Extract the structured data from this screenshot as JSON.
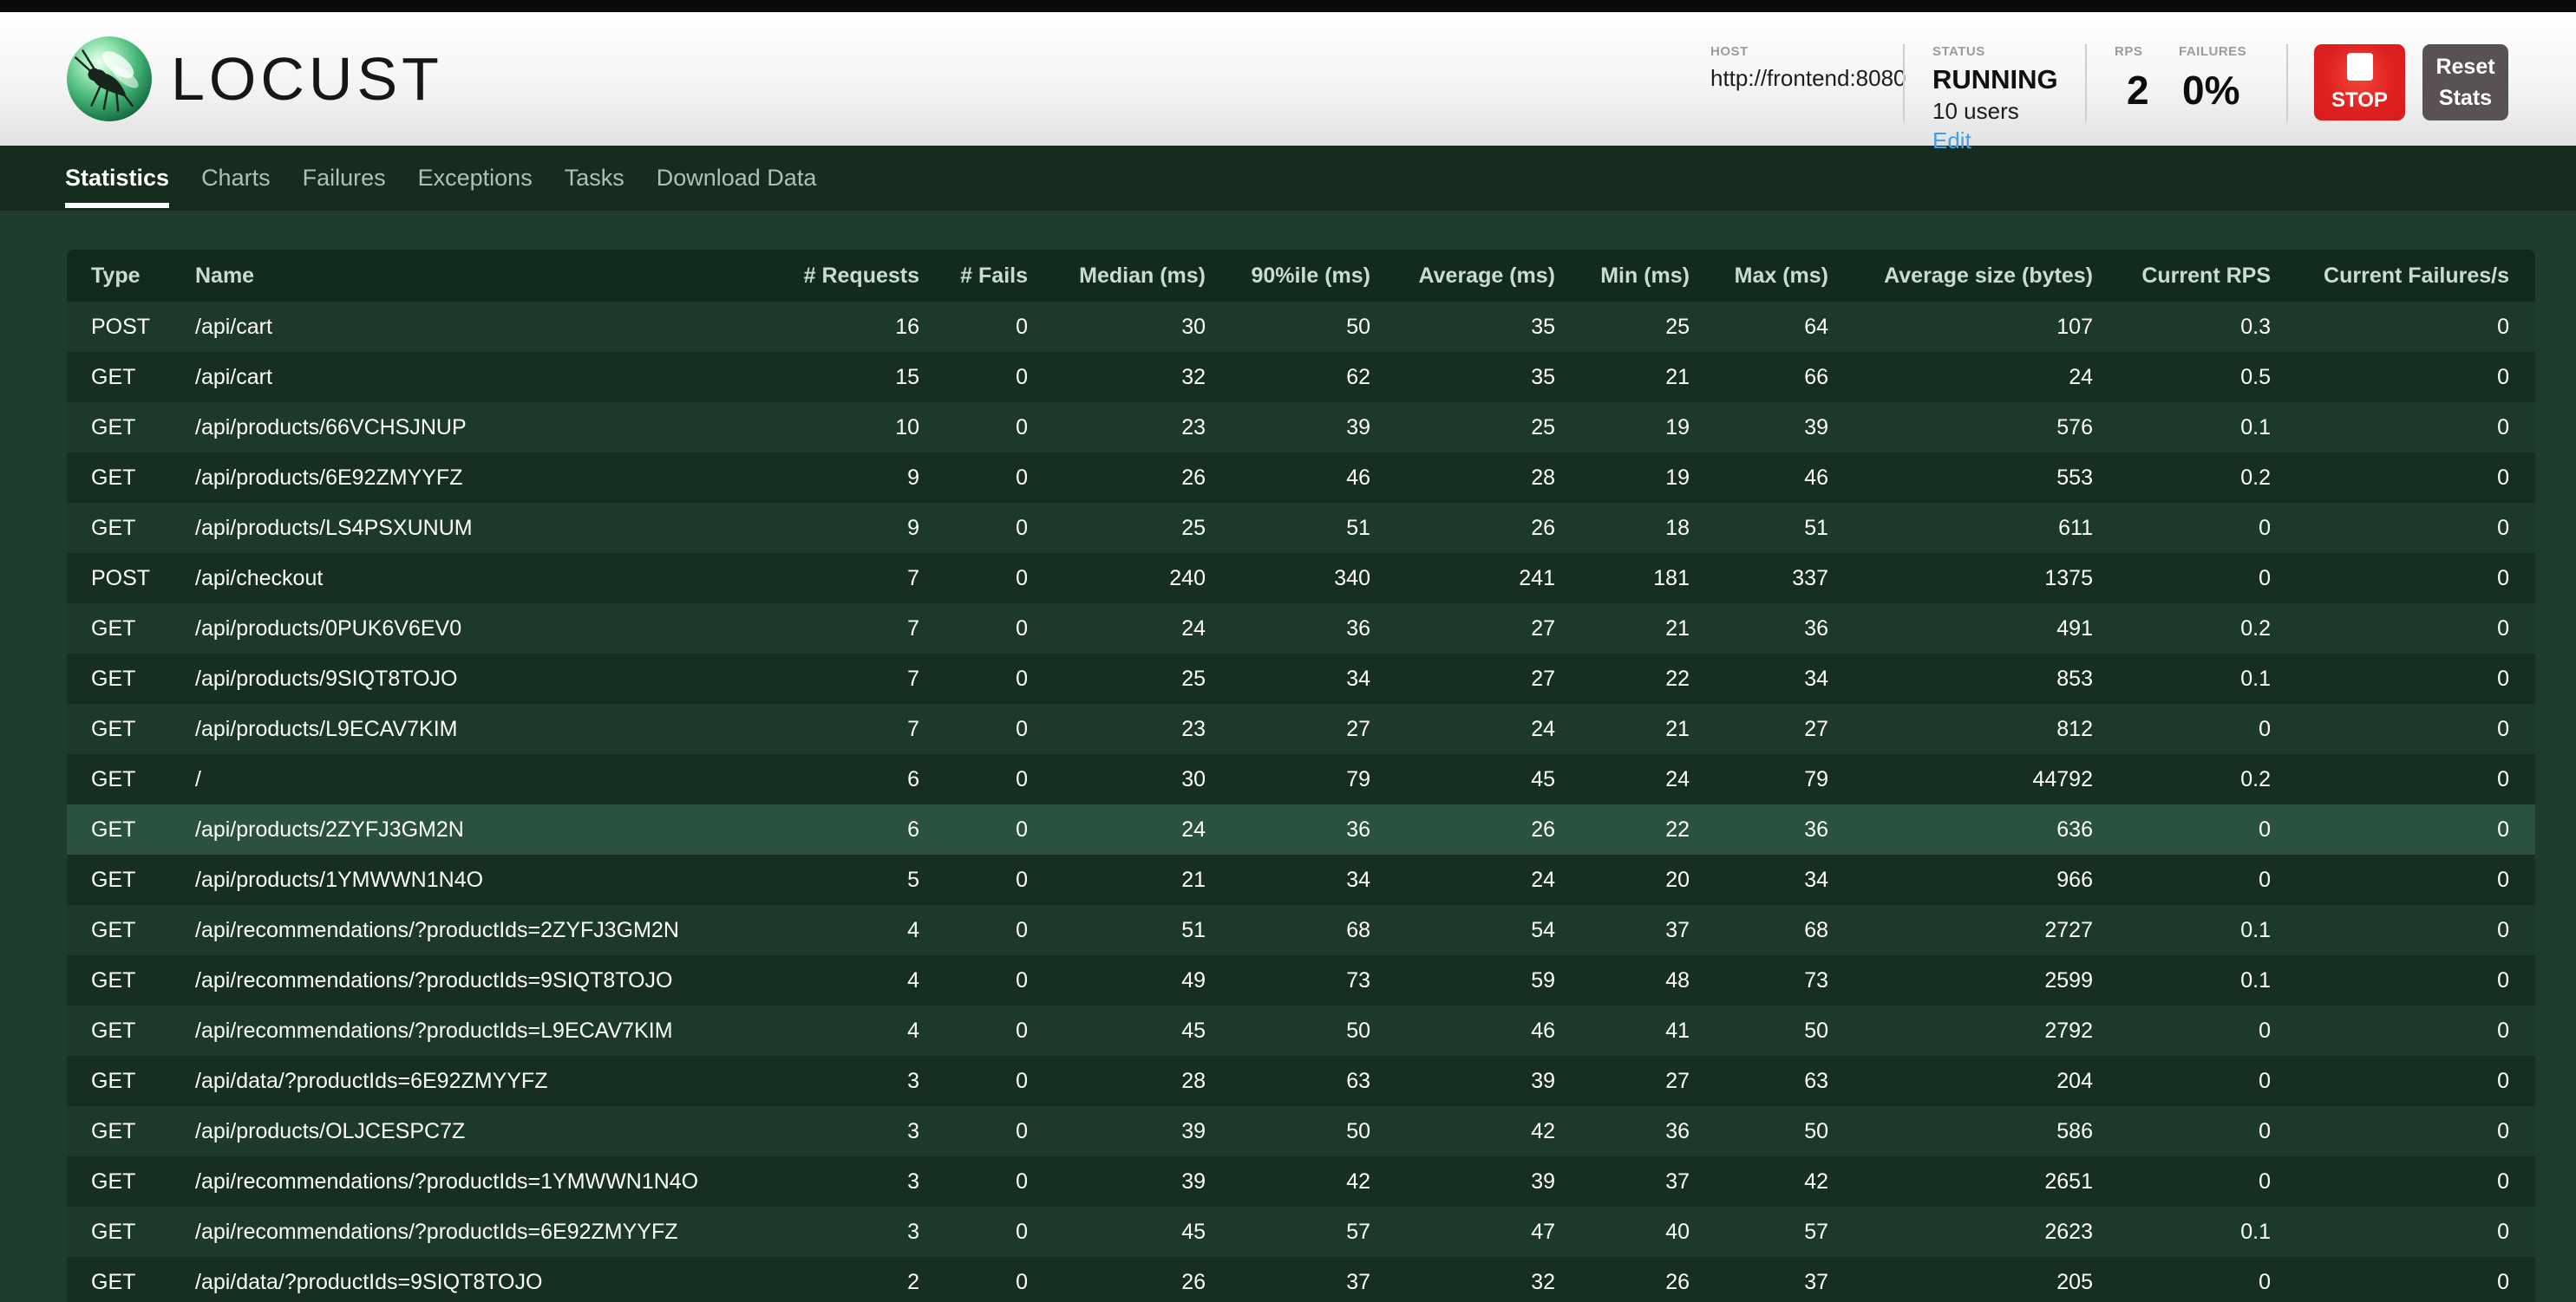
{
  "header": {
    "logo_text": "LOCUST",
    "host": {
      "label": "HOST",
      "value": "http://frontend:8080"
    },
    "status": {
      "label": "STATUS",
      "state": "RUNNING",
      "users": "10 users",
      "edit_label": "Edit"
    },
    "rps": {
      "label": "RPS",
      "value": "2"
    },
    "failures": {
      "label": "FAILURES",
      "value": "0%"
    },
    "stop_button": {
      "label": "STOP"
    },
    "reset_button": {
      "line1": "Reset",
      "line2": "Stats"
    }
  },
  "nav": {
    "tabs": [
      {
        "label": "Statistics",
        "active": true
      },
      {
        "label": "Charts",
        "active": false
      },
      {
        "label": "Failures",
        "active": false
      },
      {
        "label": "Exceptions",
        "active": false
      },
      {
        "label": "Tasks",
        "active": false
      },
      {
        "label": "Download Data",
        "active": false
      }
    ]
  },
  "table": {
    "columns": [
      "Type",
      "Name",
      "# Requests",
      "# Fails",
      "Median (ms)",
      "90%ile (ms)",
      "Average (ms)",
      "Min (ms)",
      "Max (ms)",
      "Average size (bytes)",
      "Current RPS",
      "Current Failures/s"
    ],
    "highlighted_row_index": 10,
    "rows": [
      [
        "POST",
        "/api/cart",
        "16",
        "0",
        "30",
        "50",
        "35",
        "25",
        "64",
        "107",
        "0.3",
        "0"
      ],
      [
        "GET",
        "/api/cart",
        "15",
        "0",
        "32",
        "62",
        "35",
        "21",
        "66",
        "24",
        "0.5",
        "0"
      ],
      [
        "GET",
        "/api/products/66VCHSJNUP",
        "10",
        "0",
        "23",
        "39",
        "25",
        "19",
        "39",
        "576",
        "0.1",
        "0"
      ],
      [
        "GET",
        "/api/products/6E92ZMYYFZ",
        "9",
        "0",
        "26",
        "46",
        "28",
        "19",
        "46",
        "553",
        "0.2",
        "0"
      ],
      [
        "GET",
        "/api/products/LS4PSXUNUM",
        "9",
        "0",
        "25",
        "51",
        "26",
        "18",
        "51",
        "611",
        "0",
        "0"
      ],
      [
        "POST",
        "/api/checkout",
        "7",
        "0",
        "240",
        "340",
        "241",
        "181",
        "337",
        "1375",
        "0",
        "0"
      ],
      [
        "GET",
        "/api/products/0PUK6V6EV0",
        "7",
        "0",
        "24",
        "36",
        "27",
        "21",
        "36",
        "491",
        "0.2",
        "0"
      ],
      [
        "GET",
        "/api/products/9SIQT8TOJO",
        "7",
        "0",
        "25",
        "34",
        "27",
        "22",
        "34",
        "853",
        "0.1",
        "0"
      ],
      [
        "GET",
        "/api/products/L9ECAV7KIM",
        "7",
        "0",
        "23",
        "27",
        "24",
        "21",
        "27",
        "812",
        "0",
        "0"
      ],
      [
        "GET",
        "/",
        "6",
        "0",
        "30",
        "79",
        "45",
        "24",
        "79",
        "44792",
        "0.2",
        "0"
      ],
      [
        "GET",
        "/api/products/2ZYFJ3GM2N",
        "6",
        "0",
        "24",
        "36",
        "26",
        "22",
        "36",
        "636",
        "0",
        "0"
      ],
      [
        "GET",
        "/api/products/1YMWWN1N4O",
        "5",
        "0",
        "21",
        "34",
        "24",
        "20",
        "34",
        "966",
        "0",
        "0"
      ],
      [
        "GET",
        "/api/recommendations/?productIds=2ZYFJ3GM2N",
        "4",
        "0",
        "51",
        "68",
        "54",
        "37",
        "68",
        "2727",
        "0.1",
        "0"
      ],
      [
        "GET",
        "/api/recommendations/?productIds=9SIQT8TOJO",
        "4",
        "0",
        "49",
        "73",
        "59",
        "48",
        "73",
        "2599",
        "0.1",
        "0"
      ],
      [
        "GET",
        "/api/recommendations/?productIds=L9ECAV7KIM",
        "4",
        "0",
        "45",
        "50",
        "46",
        "41",
        "50",
        "2792",
        "0",
        "0"
      ],
      [
        "GET",
        "/api/data/?productIds=6E92ZMYYFZ",
        "3",
        "0",
        "28",
        "63",
        "39",
        "27",
        "63",
        "204",
        "0",
        "0"
      ],
      [
        "GET",
        "/api/products/OLJCESPC7Z",
        "3",
        "0",
        "39",
        "50",
        "42",
        "36",
        "50",
        "586",
        "0",
        "0"
      ],
      [
        "GET",
        "/api/recommendations/?productIds=1YMWWN1N4O",
        "3",
        "0",
        "39",
        "42",
        "39",
        "37",
        "42",
        "2651",
        "0",
        "0"
      ],
      [
        "GET",
        "/api/recommendations/?productIds=6E92ZMYYFZ",
        "3",
        "0",
        "45",
        "57",
        "47",
        "40",
        "57",
        "2623",
        "0.1",
        "0"
      ],
      [
        "GET",
        "/api/data/?productIds=9SIQT8TOJO",
        "2",
        "0",
        "26",
        "37",
        "32",
        "26",
        "37",
        "205",
        "0",
        "0"
      ]
    ]
  },
  "colors": {
    "page_background": "#1f3d2c",
    "nav_background": "#152c1e",
    "table_header_background": "#132b1d",
    "row_odd": "#1d3929",
    "row_even": "#162f21",
    "row_highlight": "#2b5140",
    "stop_button_red": "#e02020",
    "reset_button_gray": "#5a5252",
    "edit_link_blue": "#42a0e8",
    "active_tab_underline": "#ffffff"
  }
}
